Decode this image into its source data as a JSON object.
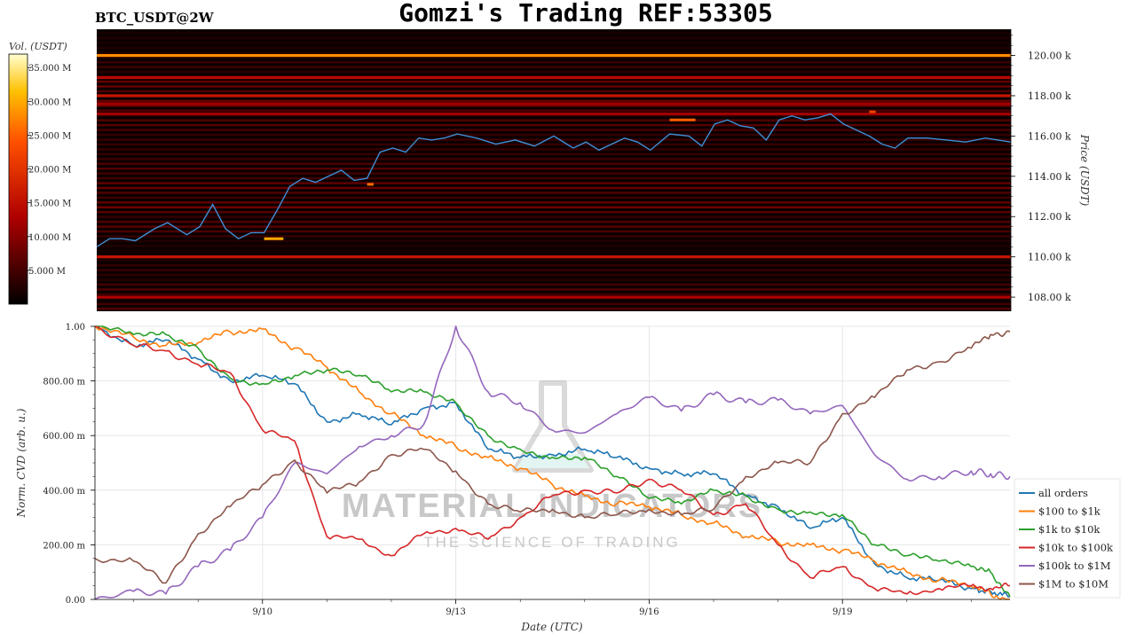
{
  "header": {
    "symbol": "BTC_USDT@2W",
    "title": "Gomzi's Trading REF:53305"
  },
  "colorbar": {
    "label": "Vol. (USDT)",
    "ticks": [
      "35.000 M",
      "30.000 M",
      "25.000 M",
      "20.000 M",
      "15.000 M",
      "10.000 M",
      "5.000 M"
    ],
    "tick_values": [
      35,
      30,
      25,
      20,
      15,
      10,
      5
    ],
    "range": [
      0,
      37
    ]
  },
  "watermark": {
    "brand": "MATERIAL INDICATORS",
    "tagline": "THE SCIENCE OF TRADING"
  },
  "chart_data": [
    {
      "type": "heatmap",
      "name": "price-heatmap",
      "ylabel": "Price (USDT)",
      "ylim": [
        107.3,
        121.3
      ],
      "y_ticks": [
        108,
        110,
        112,
        114,
        116,
        118,
        120
      ],
      "y_tick_labels": [
        "108.00 k",
        "110.00 k",
        "112.00 k",
        "114.00 k",
        "116.00 k",
        "118.00 k",
        "120.00 k"
      ],
      "x_range_days": [
        7.4,
        21.6
      ],
      "bright_levels": [
        {
          "price": 120.0,
          "intensity": 28
        },
        {
          "price": 118.9,
          "intensity": 14
        },
        {
          "price": 118.0,
          "intensity": 16
        },
        {
          "price": 117.6,
          "intensity": 12
        },
        {
          "price": 117.1,
          "intensity": 12
        },
        {
          "price": 110.0,
          "intensity": 16
        },
        {
          "price": 108.0,
          "intensity": 13
        }
      ],
      "hot_spots": [
        {
          "x_start": 10.0,
          "x_end": 10.3,
          "price": 110.9,
          "intensity": 30
        },
        {
          "x_start": 11.6,
          "x_end": 11.7,
          "price": 113.6,
          "intensity": 26
        },
        {
          "x_start": 16.3,
          "x_end": 16.7,
          "price": 116.8,
          "intensity": 25
        },
        {
          "x_start": 19.4,
          "x_end": 19.5,
          "price": 117.2,
          "intensity": 22
        }
      ],
      "price_series": {
        "x": [
          7.4,
          7.6,
          7.8,
          8.0,
          8.3,
          8.5,
          8.8,
          9.0,
          9.2,
          9.4,
          9.6,
          9.8,
          10.0,
          10.2,
          10.4,
          10.6,
          10.8,
          11.0,
          11.2,
          11.4,
          11.6,
          11.8,
          12.0,
          12.2,
          12.4,
          12.6,
          12.8,
          13.0,
          13.3,
          13.6,
          13.9,
          14.2,
          14.5,
          14.8,
          15.0,
          15.2,
          15.4,
          15.6,
          15.8,
          16.0,
          16.3,
          16.6,
          16.8,
          17.0,
          17.2,
          17.4,
          17.6,
          17.8,
          18.0,
          18.2,
          18.4,
          18.6,
          18.8,
          19.0,
          19.2,
          19.4,
          19.6,
          19.8,
          20.0,
          20.3,
          20.6,
          20.9,
          21.2,
          21.6
        ],
        "y": [
          110.5,
          110.9,
          110.9,
          110.8,
          111.4,
          111.7,
          111.1,
          111.5,
          112.6,
          111.4,
          110.9,
          111.2,
          111.2,
          112.3,
          113.5,
          113.9,
          113.7,
          114.0,
          114.3,
          113.8,
          113.9,
          115.2,
          115.4,
          115.2,
          115.9,
          115.8,
          115.9,
          116.1,
          115.9,
          115.6,
          115.8,
          115.5,
          116.0,
          115.4,
          115.7,
          115.3,
          115.6,
          115.9,
          115.7,
          115.3,
          116.1,
          116.0,
          115.5,
          116.6,
          116.8,
          116.5,
          116.4,
          115.8,
          116.8,
          117.0,
          116.8,
          116.9,
          117.1,
          116.6,
          116.3,
          116.0,
          115.6,
          115.4,
          115.9,
          115.9,
          115.8,
          115.7,
          115.9,
          115.7
        ]
      }
    },
    {
      "type": "line",
      "name": "cvd-chart",
      "xlabel": "Date (UTC)",
      "ylabel": "Norm. CVD (arb. u.)",
      "ylim": [
        0,
        1
      ],
      "xlim": [
        7.4,
        21.6
      ],
      "y_ticks": [
        0,
        0.2,
        0.4,
        0.6,
        0.8,
        1.0
      ],
      "y_tick_labels": [
        "0.00",
        "200.00 m",
        "400.00 m",
        "600.00 m",
        "800.00 m",
        "1.00"
      ],
      "x_ticks": [
        10,
        13,
        16,
        19
      ],
      "x_tick_labels": [
        "9/10",
        "9/13",
        "9/16",
        "9/19"
      ],
      "legend_position": "right",
      "x": [
        7.4,
        8.0,
        8.5,
        9.0,
        9.5,
        10.0,
        10.5,
        11.0,
        11.5,
        12.0,
        12.5,
        13.0,
        13.5,
        14.0,
        14.5,
        15.0,
        15.5,
        16.0,
        16.5,
        17.0,
        17.5,
        18.0,
        18.5,
        19.0,
        19.5,
        20.0,
        20.5,
        21.0,
        21.3,
        21.6
      ],
      "series": [
        {
          "name": "all orders",
          "color": "#1f77b4",
          "values": [
            1.0,
            0.93,
            0.95,
            0.88,
            0.8,
            0.82,
            0.79,
            0.65,
            0.68,
            0.64,
            0.7,
            0.72,
            0.55,
            0.52,
            0.53,
            0.55,
            0.52,
            0.48,
            0.46,
            0.46,
            0.38,
            0.34,
            0.26,
            0.3,
            0.13,
            0.08,
            0.07,
            0.04,
            0.03,
            0.01
          ]
        },
        {
          "name": "$100 to $1k",
          "color": "#ff7f0e",
          "values": [
            1.0,
            0.96,
            0.93,
            0.94,
            0.98,
            0.99,
            0.92,
            0.85,
            0.76,
            0.68,
            0.6,
            0.56,
            0.52,
            0.48,
            0.42,
            0.38,
            0.35,
            0.34,
            0.31,
            0.28,
            0.23,
            0.21,
            0.2,
            0.18,
            0.14,
            0.1,
            0.07,
            0.05,
            0.02,
            0.0
          ]
        },
        {
          "name": "$1k to $10k",
          "color": "#2ca02c",
          "values": [
            1.0,
            0.97,
            0.97,
            0.92,
            0.81,
            0.79,
            0.82,
            0.84,
            0.82,
            0.76,
            0.76,
            0.72,
            0.6,
            0.55,
            0.52,
            0.52,
            0.45,
            0.37,
            0.35,
            0.4,
            0.38,
            0.33,
            0.32,
            0.31,
            0.2,
            0.16,
            0.14,
            0.12,
            0.1,
            0.01
          ]
        },
        {
          "name": "$10k to $100k",
          "color": "#d62728",
          "values": [
            1.0,
            0.93,
            0.91,
            0.86,
            0.83,
            0.62,
            0.58,
            0.23,
            0.22,
            0.16,
            0.24,
            0.26,
            0.22,
            0.3,
            0.38,
            0.4,
            0.39,
            0.44,
            0.4,
            0.31,
            0.35,
            0.2,
            0.08,
            0.12,
            0.04,
            0.02,
            0.04,
            0.05,
            0.04,
            0.05
          ]
        },
        {
          "name": "$100k to $1M",
          "color": "#9467bd",
          "values": [
            0.0,
            0.03,
            0.02,
            0.12,
            0.18,
            0.3,
            0.5,
            0.46,
            0.56,
            0.6,
            0.64,
            1.0,
            0.76,
            0.72,
            0.62,
            0.61,
            0.68,
            0.74,
            0.69,
            0.75,
            0.72,
            0.73,
            0.68,
            0.71,
            0.53,
            0.44,
            0.45,
            0.47,
            0.46,
            0.45
          ]
        },
        {
          "name": "$1M to $10M",
          "color": "#8c564b",
          "values": [
            0.15,
            0.14,
            0.06,
            0.24,
            0.34,
            0.42,
            0.51,
            0.39,
            0.43,
            0.53,
            0.55,
            0.47,
            0.35,
            0.32,
            0.33,
            0.3,
            0.31,
            0.33,
            0.31,
            0.33,
            0.45,
            0.5,
            0.5,
            0.68,
            0.74,
            0.84,
            0.87,
            0.92,
            0.97,
            0.98
          ]
        }
      ]
    }
  ]
}
